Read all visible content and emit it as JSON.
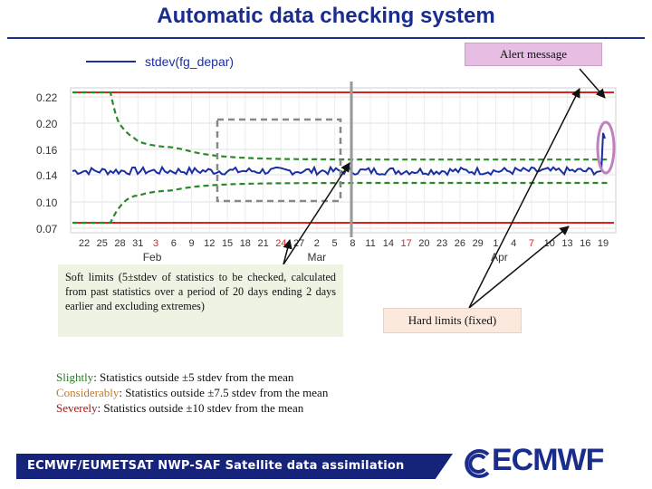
{
  "title": "Automatic data checking system",
  "legend": {
    "series_label": "stdev(fg_depar)"
  },
  "alert_label": "Alert message",
  "soft_limits_text": "Soft limits (5±stdev of statistics to be checked, calculated from past statistics over a period of 20 days ending 2 days earlier and excluding extremes)",
  "hard_limits_text": "Hard limits (fixed)",
  "severity": [
    {
      "key": "Slightly",
      "rest": ": Statistics outside ±5 stdev from the mean"
    },
    {
      "key": "Considerably",
      "rest": ": Statistics outside ±7.5 stdev from the mean"
    },
    {
      "key": "Severely",
      "rest": ": Statistics outside ±10 stdev from the mean"
    }
  ],
  "footer": "ECMWF/EUMETSAT NWP-SAF Satellite data assimilation",
  "logo_text": "ECMWF",
  "colors": {
    "series": "#1b2fa0",
    "soft_limits": "#2a8a2a",
    "hard_limits": "#e02020",
    "highlight": "#c080c0",
    "grid_dash": "#888888",
    "title": "#1a2c8c",
    "footer_bg": "#15237a",
    "red_ticks": "#e02020"
  },
  "chart_data": {
    "type": "line",
    "y_ticks": [
      "0.22",
      "0.20",
      "0.16",
      "0.14",
      "0.10",
      "0.07"
    ],
    "ylim": [
      0.07,
      0.22
    ],
    "x_ticks": [
      "22",
      "25",
      "28",
      "31",
      "3",
      "6",
      "9",
      "12",
      "15",
      "18",
      "21",
      "24",
      "27",
      "2",
      "5",
      "8",
      "11",
      "14",
      "17",
      "20",
      "23",
      "26",
      "29",
      "1",
      "4",
      "7",
      "10",
      "13",
      "16",
      "19"
    ],
    "x_ticks_red": [
      "3",
      "24",
      "17",
      "7"
    ],
    "month_labels": [
      "Feb",
      "Mar",
      "Apr"
    ],
    "grid": true,
    "series": [
      {
        "name": "stdev(fg_depar)",
        "mean": 0.143,
        "amplitude": 0.003,
        "final_spike": 0.185
      }
    ],
    "soft_limits": {
      "upper_start": 0.22,
      "upper_settled": 0.152,
      "lower_start": 0.07,
      "lower_settled": 0.128
    },
    "hard_limits": [
      0.22,
      0.07
    ]
  }
}
